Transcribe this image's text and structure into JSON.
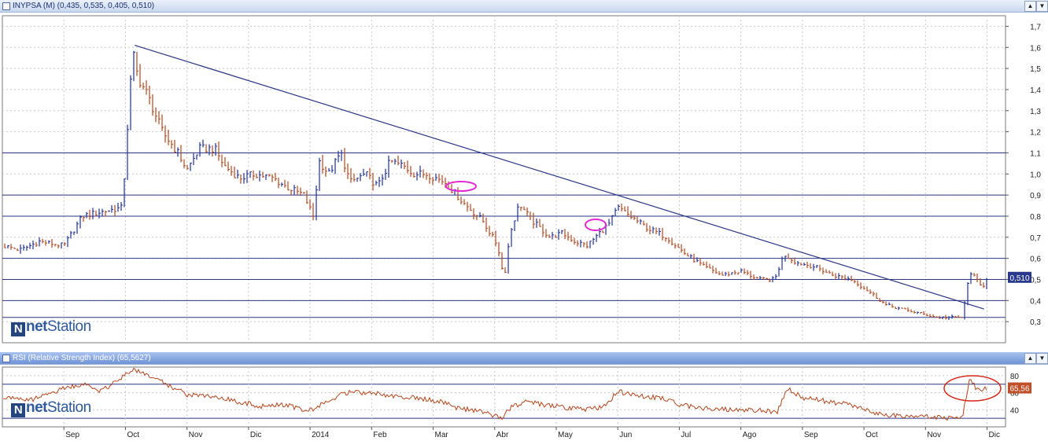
{
  "price_panel": {
    "title": "INYPSA (M) (0,435, 0,535, 0,405, 0,510)",
    "last_value_label": "0,510",
    "logo_text_bold": "net",
    "logo_text": "Station",
    "buttons": [
      "▲",
      "▼"
    ]
  },
  "rsi_panel": {
    "title": "RSI (Relative Strength Index) (65,5627)",
    "last_value_label": "65,56",
    "logo_text_bold": "net",
    "logo_text": "Station",
    "buttons": [
      "▲",
      "▼"
    ]
  },
  "colors": {
    "bar_red": "#b5451b",
    "bar_blue": "#1d2f9e",
    "trendline": "#2a3585",
    "hline": "#2a3585",
    "rsi_line": "#b5451b",
    "ellipse_magenta": "#e22bd5",
    "ellipse_red": "#d42a1a",
    "value_box": "#2a3a8a",
    "rsi_value_box": "#c0502a"
  },
  "chart_data": [
    {
      "type": "bar",
      "subtype": "ohlc",
      "title": "INYPSA (M) (0,435, 0,535, 0,405, 0,510)",
      "ylim": [
        0.2,
        1.75
      ],
      "y_ticks": [
        "0,3",
        "0,4",
        "0,5",
        "0,6",
        "0,7",
        "0,8",
        "0,9",
        "1,0",
        "1,1",
        "1,2",
        "1,3",
        "1,4",
        "1,5",
        "1,6",
        "1,7"
      ],
      "x_ticks": [
        "Sep",
        "Oct",
        "Nov",
        "Dic",
        "2014",
        "Feb",
        "Mar",
        "Abr",
        "May",
        "Jun",
        "Jul",
        "Ago",
        "Sep",
        "Oct",
        "Nov",
        "Dic"
      ],
      "x_tick_months": [
        2,
        3,
        4,
        5,
        6,
        7,
        8,
        9,
        10,
        11,
        12,
        13,
        14,
        15,
        16,
        17
      ],
      "series": [
        {
          "values": [
            [
              1.0,
              0.66
            ],
            [
              1.3,
              0.64
            ],
            [
              1.6,
              0.68
            ],
            [
              2.0,
              0.66
            ],
            [
              2.3,
              0.8
            ],
            [
              2.6,
              0.82
            ],
            [
              2.95,
              0.84
            ],
            [
              3.05,
              1.3
            ],
            [
              3.12,
              1.58
            ],
            [
              3.2,
              1.46
            ],
            [
              3.35,
              1.38
            ],
            [
              3.6,
              1.2
            ],
            [
              3.85,
              1.1
            ],
            [
              4.0,
              1.02
            ],
            [
              4.2,
              1.12
            ],
            [
              4.45,
              1.12
            ],
            [
              4.6,
              1.04
            ],
            [
              4.85,
              0.98
            ],
            [
              5.1,
              1.0
            ],
            [
              5.4,
              0.98
            ],
            [
              5.6,
              0.94
            ],
            [
              5.9,
              0.9
            ],
            [
              6.05,
              0.8
            ],
            [
              6.15,
              1.06
            ],
            [
              6.3,
              1.0
            ],
            [
              6.5,
              1.1
            ],
            [
              6.65,
              0.96
            ],
            [
              6.9,
              1.0
            ],
            [
              7.1,
              0.94
            ],
            [
              7.3,
              1.06
            ],
            [
              7.5,
              1.04
            ],
            [
              7.7,
              1.0
            ],
            [
              7.9,
              1.0
            ],
            [
              8.2,
              0.96
            ],
            [
              8.5,
              0.86
            ],
            [
              8.8,
              0.78
            ],
            [
              9.05,
              0.66
            ],
            [
              9.15,
              0.5
            ],
            [
              9.25,
              0.72
            ],
            [
              9.4,
              0.86
            ],
            [
              9.6,
              0.78
            ],
            [
              9.9,
              0.7
            ],
            [
              10.1,
              0.72
            ],
            [
              10.3,
              0.68
            ],
            [
              10.5,
              0.66
            ],
            [
              10.7,
              0.72
            ],
            [
              10.85,
              0.76
            ],
            [
              11.0,
              0.84
            ],
            [
              11.2,
              0.8
            ],
            [
              11.5,
              0.74
            ],
            [
              11.8,
              0.7
            ],
            [
              12.1,
              0.62
            ],
            [
              12.4,
              0.56
            ],
            [
              12.7,
              0.52
            ],
            [
              13.0,
              0.54
            ],
            [
              13.3,
              0.5
            ],
            [
              13.55,
              0.5
            ],
            [
              13.7,
              0.62
            ],
            [
              13.9,
              0.58
            ],
            [
              14.2,
              0.56
            ],
            [
              14.5,
              0.52
            ],
            [
              14.8,
              0.5
            ],
            [
              15.1,
              0.44
            ],
            [
              15.35,
              0.38
            ],
            [
              15.6,
              0.36
            ],
            [
              15.9,
              0.34
            ],
            [
              16.2,
              0.32
            ],
            [
              16.4,
              0.32
            ],
            [
              16.6,
              0.32
            ],
            [
              16.72,
              0.54
            ],
            [
              16.82,
              0.5
            ],
            [
              16.92,
              0.46
            ],
            [
              17.0,
              0.51
            ]
          ]
        }
      ],
      "horizontal_lines": [
        1.1,
        0.9,
        0.8,
        0.6,
        0.5,
        0.4,
        0.32
      ],
      "trendline": [
        [
          3.15,
          1.61
        ],
        [
          16.95,
          0.36
        ]
      ],
      "last_value": 0.51
    },
    {
      "type": "line",
      "title": "RSI (Relative Strength Index) (65,5627)",
      "ylim": [
        20,
        90
      ],
      "y_ticks": [
        "40",
        "60",
        "80"
      ],
      "horizontal_lines": [
        70,
        30
      ],
      "series": [
        {
          "values": [
            [
              1.0,
              55
            ],
            [
              1.5,
              52
            ],
            [
              2.0,
              65
            ],
            [
              2.3,
              70
            ],
            [
              2.6,
              62
            ],
            [
              2.9,
              75
            ],
            [
              3.1,
              88
            ],
            [
              3.4,
              80
            ],
            [
              3.7,
              68
            ],
            [
              4.0,
              58
            ],
            [
              4.4,
              56
            ],
            [
              4.8,
              50
            ],
            [
              5.2,
              44
            ],
            [
              5.6,
              46
            ],
            [
              5.9,
              40
            ],
            [
              6.1,
              42
            ],
            [
              6.3,
              52
            ],
            [
              6.6,
              60
            ],
            [
              7.0,
              60
            ],
            [
              7.4,
              56
            ],
            [
              7.7,
              54
            ],
            [
              8.1,
              50
            ],
            [
              8.4,
              42
            ],
            [
              8.8,
              38
            ],
            [
              9.1,
              30
            ],
            [
              9.25,
              42
            ],
            [
              9.5,
              50
            ],
            [
              9.8,
              46
            ],
            [
              10.2,
              42
            ],
            [
              10.5,
              40
            ],
            [
              10.8,
              44
            ],
            [
              11.0,
              62
            ],
            [
              11.3,
              56
            ],
            [
              11.7,
              54
            ],
            [
              12.0,
              46
            ],
            [
              12.4,
              42
            ],
            [
              12.8,
              40
            ],
            [
              13.2,
              40
            ],
            [
              13.6,
              38
            ],
            [
              13.75,
              66
            ],
            [
              14.0,
              54
            ],
            [
              14.4,
              50
            ],
            [
              14.8,
              46
            ],
            [
              15.2,
              36
            ],
            [
              15.6,
              32
            ],
            [
              16.0,
              32
            ],
            [
              16.4,
              30
            ],
            [
              16.6,
              32
            ],
            [
              16.72,
              78
            ],
            [
              16.85,
              62
            ],
            [
              17.0,
              65.56
            ]
          ]
        }
      ],
      "last_value": 65.56
    }
  ]
}
